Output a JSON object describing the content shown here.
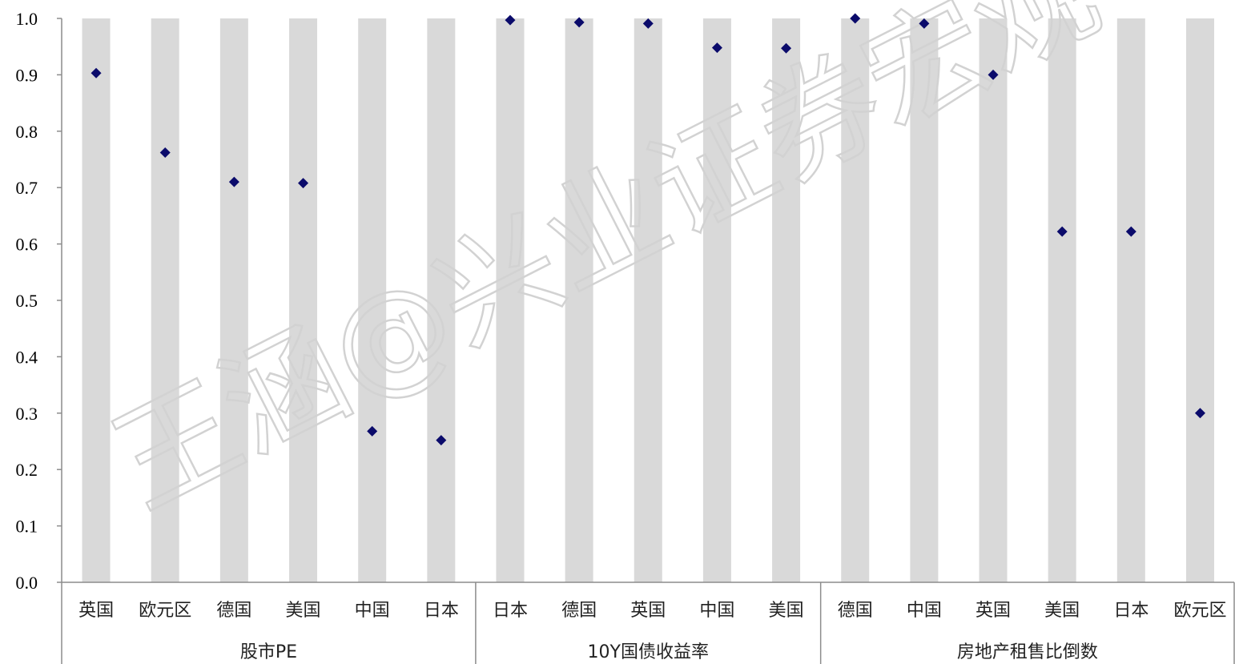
{
  "chart_data": {
    "type": "scatter",
    "ylim": [
      0,
      1.0
    ],
    "yticks": [
      "0.0",
      "0.1",
      "0.2",
      "0.3",
      "0.4",
      "0.5",
      "0.6",
      "0.7",
      "0.8",
      "0.9",
      "1.0"
    ],
    "grid": false,
    "background_bars": true,
    "colors": {
      "marker": "#0b0b6b",
      "bar": "#d9d9d9",
      "axis": "#8c8c8c"
    },
    "groups": [
      {
        "label": "股市PE",
        "categories": [
          "英国",
          "欧元区",
          "德国",
          "美国",
          "中国",
          "日本"
        ],
        "values": [
          0.903,
          0.762,
          0.71,
          0.708,
          0.268,
          0.252
        ]
      },
      {
        "label": "10Y国债收益率",
        "categories": [
          "日本",
          "德国",
          "英国",
          "中国",
          "美国"
        ],
        "values": [
          0.997,
          0.993,
          0.991,
          0.948,
          0.947
        ]
      },
      {
        "label": "房地产租售比倒数",
        "categories": [
          "德国",
          "中国",
          "英国",
          "美国",
          "日本",
          "欧元区"
        ],
        "values": [
          1.0,
          0.991,
          0.9,
          0.622,
          0.622,
          0.3
        ]
      }
    ]
  },
  "watermark": "王涵@兴业证券宏观"
}
